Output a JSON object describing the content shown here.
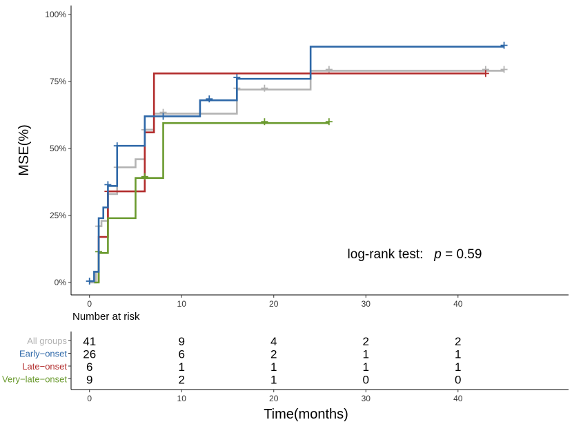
{
  "chart_data": {
    "type": "line",
    "subtype": "kaplan-meier-step",
    "ylabel": "MSE(%)",
    "xlabel": "Time(months)",
    "xlim": [
      -2,
      52
    ],
    "ylim": [
      0,
      100
    ],
    "x_ticks": [
      "0",
      "10",
      "20",
      "30",
      "40"
    ],
    "x_tick_values": [
      0,
      10,
      20,
      30,
      40
    ],
    "y_ticks": [
      "0%",
      "25%",
      "50%",
      "75%",
      "100%"
    ],
    "y_tick_values": [
      0,
      25,
      50,
      75,
      100
    ],
    "annotation": {
      "prefix": "log-rank test:",
      "p_symbol": "p",
      "p_text": " = 0.59",
      "x": 28,
      "y": 9
    },
    "series": [
      {
        "name": "All groups",
        "color": "#b3b3b3",
        "steps": [
          [
            0,
            0
          ],
          [
            0.7,
            4
          ],
          [
            1,
            21
          ],
          [
            1.3,
            23
          ],
          [
            2,
            33
          ],
          [
            3,
            43
          ],
          [
            5,
            46
          ],
          [
            6,
            57
          ],
          [
            7,
            63
          ],
          [
            16,
            72
          ],
          [
            24,
            79
          ],
          [
            45,
            79
          ]
        ],
        "censored": [
          [
            1,
            21
          ],
          [
            2,
            34
          ],
          [
            3,
            43
          ],
          [
            6,
            57
          ],
          [
            8,
            63.5
          ],
          [
            16,
            72.5
          ],
          [
            19,
            72.5
          ],
          [
            26,
            79.5
          ],
          [
            43,
            79.5
          ],
          [
            45,
            79.5
          ]
        ]
      },
      {
        "name": "Early-onset",
        "color": "#2e68a8",
        "steps": [
          [
            0,
            0.5
          ],
          [
            0.5,
            4
          ],
          [
            1,
            24
          ],
          [
            1.5,
            28
          ],
          [
            2,
            36
          ],
          [
            3,
            51
          ],
          [
            6,
            62
          ],
          [
            12,
            68
          ],
          [
            16,
            76
          ],
          [
            24,
            88
          ],
          [
            45,
            88
          ]
        ],
        "censored": [
          [
            0,
            0.5
          ],
          [
            2,
            36.5
          ],
          [
            3,
            51
          ],
          [
            8,
            62
          ],
          [
            13,
            68.5
          ],
          [
            16,
            76.5
          ],
          [
            45,
            88.5
          ]
        ]
      },
      {
        "name": "Late-onset",
        "color": "#b22c2c",
        "steps": [
          [
            1,
            0
          ],
          [
            1,
            17
          ],
          [
            2,
            34
          ],
          [
            6,
            56
          ],
          [
            7,
            78
          ],
          [
            43,
            78
          ]
        ],
        "censored": [
          [
            2,
            34
          ],
          [
            43,
            78
          ]
        ]
      },
      {
        "name": "Very-late-onset",
        "color": "#6a9a2e",
        "steps": [
          [
            0.5,
            0
          ],
          [
            1,
            11
          ],
          [
            2,
            24
          ],
          [
            5,
            39
          ],
          [
            8,
            59.5
          ],
          [
            26,
            59.5
          ]
        ],
        "censored": [
          [
            1,
            11.5
          ],
          [
            6,
            39.5
          ],
          [
            19,
            60
          ],
          [
            26,
            60
          ]
        ]
      }
    ],
    "risk_table": {
      "title": "Number at risk",
      "times": [
        0,
        10,
        20,
        30,
        40
      ],
      "rows": [
        {
          "group": "All groups",
          "color": "#b3b3b3",
          "counts": [
            "41",
            "9",
            "4",
            "2",
            "2"
          ]
        },
        {
          "group": "Early−onset",
          "color": "#2e68a8",
          "counts": [
            "26",
            "6",
            "2",
            "1",
            "1"
          ]
        },
        {
          "group": "Late−onset",
          "color": "#b22c2c",
          "counts": [
            "6",
            "1",
            "1",
            "1",
            "1"
          ]
        },
        {
          "group": "Very−late−onset",
          "color": "#6a9a2e",
          "counts": [
            "9",
            "2",
            "1",
            "0",
            "0"
          ]
        }
      ]
    }
  }
}
